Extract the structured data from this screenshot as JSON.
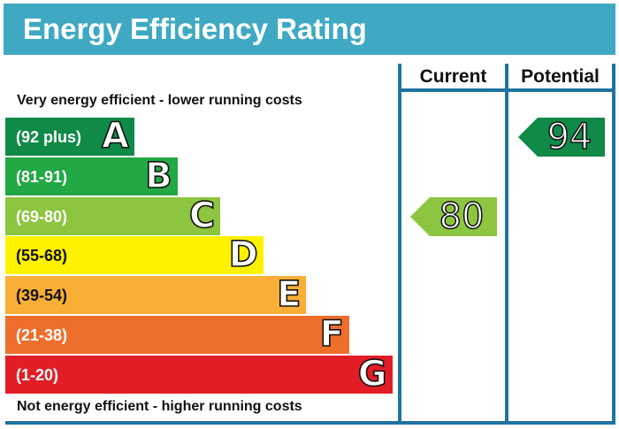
{
  "title": "Energy Efficiency Rating",
  "top_caption": "Very energy efficient - lower running costs",
  "bottom_caption": "Not energy efficient - higher running costs",
  "columns": {
    "current": "Current",
    "potential": "Potential"
  },
  "colors": {
    "header": "#3fa9c3",
    "frame": "#1f73a0",
    "A": "#0f8a47",
    "B": "#22a845",
    "C": "#8cc540",
    "D": "#fff200",
    "E": "#f9ae36",
    "F": "#ee6e2c",
    "G": "#e21d26"
  },
  "chart_data": {
    "type": "bar",
    "title": "Energy Efficiency Rating",
    "categories": [
      "A",
      "B",
      "C",
      "D",
      "E",
      "F",
      "G"
    ],
    "ranges": [
      "(92 plus)",
      "(81-91)",
      "(69-80)",
      "(55-68)",
      "(39-54)",
      "(21-38)",
      "(1-20)"
    ],
    "current": {
      "value": 80,
      "band": "C"
    },
    "potential": {
      "value": 94,
      "band": "A"
    }
  }
}
